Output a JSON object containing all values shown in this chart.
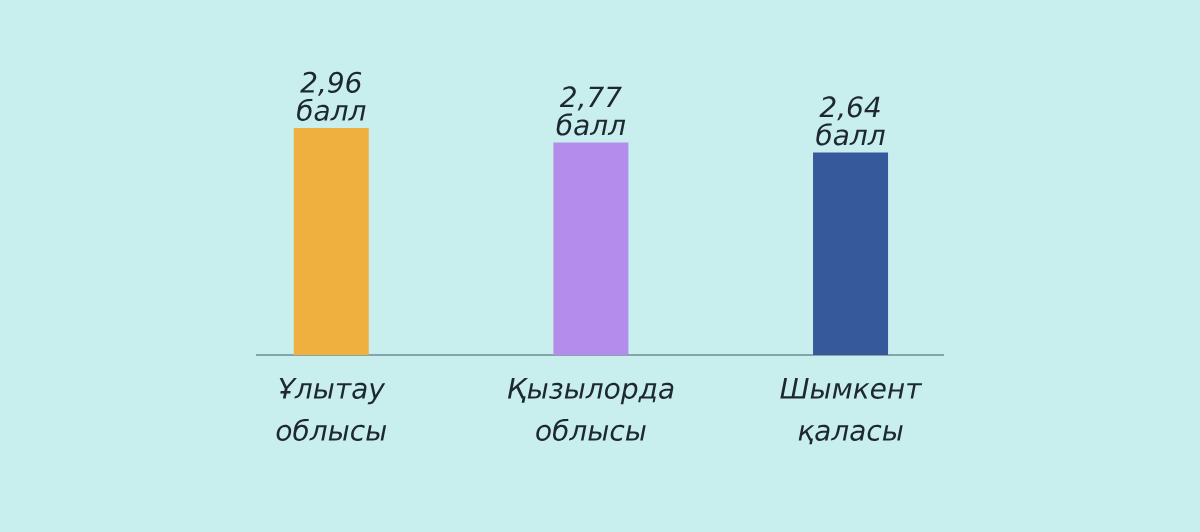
{
  "chart_data": {
    "type": "bar",
    "categories": [
      "Ұлытау облысы",
      "Қызылорда облысы",
      "Шымкент қаласы"
    ],
    "values": [
      2.96,
      2.77,
      2.64
    ],
    "colors": [
      "#f0b040",
      "#b48cec",
      "#35599a"
    ],
    "value_labels": [
      "2,96 балл",
      "2,77 балл",
      "2,64 балл"
    ]
  }
}
